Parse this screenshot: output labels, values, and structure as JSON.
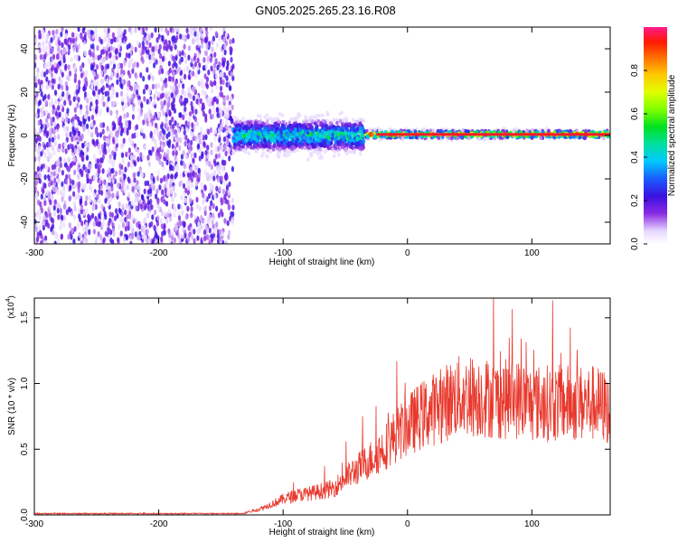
{
  "title": "GN05.2025.265.23.16.R08",
  "chart_data": [
    {
      "type": "heatmap",
      "name": "spectrogram",
      "xlabel": "Height of straight line (km)",
      "ylabel": "Frequency (Hz)",
      "xlim": [
        -300,
        163
      ],
      "ylim": [
        -50,
        50
      ],
      "xticks": [
        -300,
        -200,
        -100,
        0,
        100
      ],
      "yticks": [
        -40,
        -20,
        0,
        20,
        40
      ],
      "colorbar": {
        "label": "Normalized spectral amplitude",
        "range": [
          0,
          1
        ],
        "ticks": [
          "0.0",
          "0.2",
          "0.4",
          "0.6",
          "0.8"
        ]
      },
      "regions": [
        {
          "x_range": [
            -300,
            -140
          ],
          "description": "broadband noise",
          "freq_span": [
            -50,
            50
          ],
          "amplitude": 0.15
        },
        {
          "x_range": [
            -140,
            -35
          ],
          "description": "scattered signal",
          "center_freq": 0,
          "freq_spread": 8,
          "amplitude": 0.5
        },
        {
          "x_range": [
            -35,
            163
          ],
          "description": "narrow carrier line",
          "center_freq": 0.5,
          "freq_spread": 2,
          "amplitude": 0.9
        }
      ]
    },
    {
      "type": "line",
      "name": "snr",
      "xlabel": "Height of straight line (km)",
      "ylabel": "SNR (10 * v/v)",
      "y_multiplier": "(x10^4)",
      "xlim": [
        -300,
        163
      ],
      "ylim": [
        0,
        1.65
      ],
      "xticks": [
        -300,
        -200,
        -100,
        0,
        100
      ],
      "yticks": [
        "0.0",
        "0.5",
        "1.0",
        "1.5"
      ],
      "color": "#e8382c",
      "series": [
        {
          "x": [
            -300,
            -250,
            -200,
            -150,
            -130,
            -120,
            -110,
            -100,
            -90,
            -80,
            -70,
            -60,
            -50,
            -40,
            -30,
            -20,
            -10,
            0,
            10,
            20,
            30,
            40,
            50,
            60,
            70,
            80,
            90,
            100,
            110,
            120,
            130,
            140,
            150,
            160,
            163
          ],
          "y": [
            0.01,
            0.01,
            0.01,
            0.01,
            0.02,
            0.04,
            0.08,
            0.12,
            0.15,
            0.16,
            0.18,
            0.2,
            0.28,
            0.35,
            0.42,
            0.5,
            0.6,
            0.68,
            0.75,
            0.8,
            0.85,
            0.9,
            0.9,
            0.9,
            0.88,
            0.88,
            0.88,
            0.85,
            0.85,
            0.85,
            0.85,
            0.85,
            0.85,
            0.82,
            0.75
          ]
        }
      ]
    }
  ]
}
